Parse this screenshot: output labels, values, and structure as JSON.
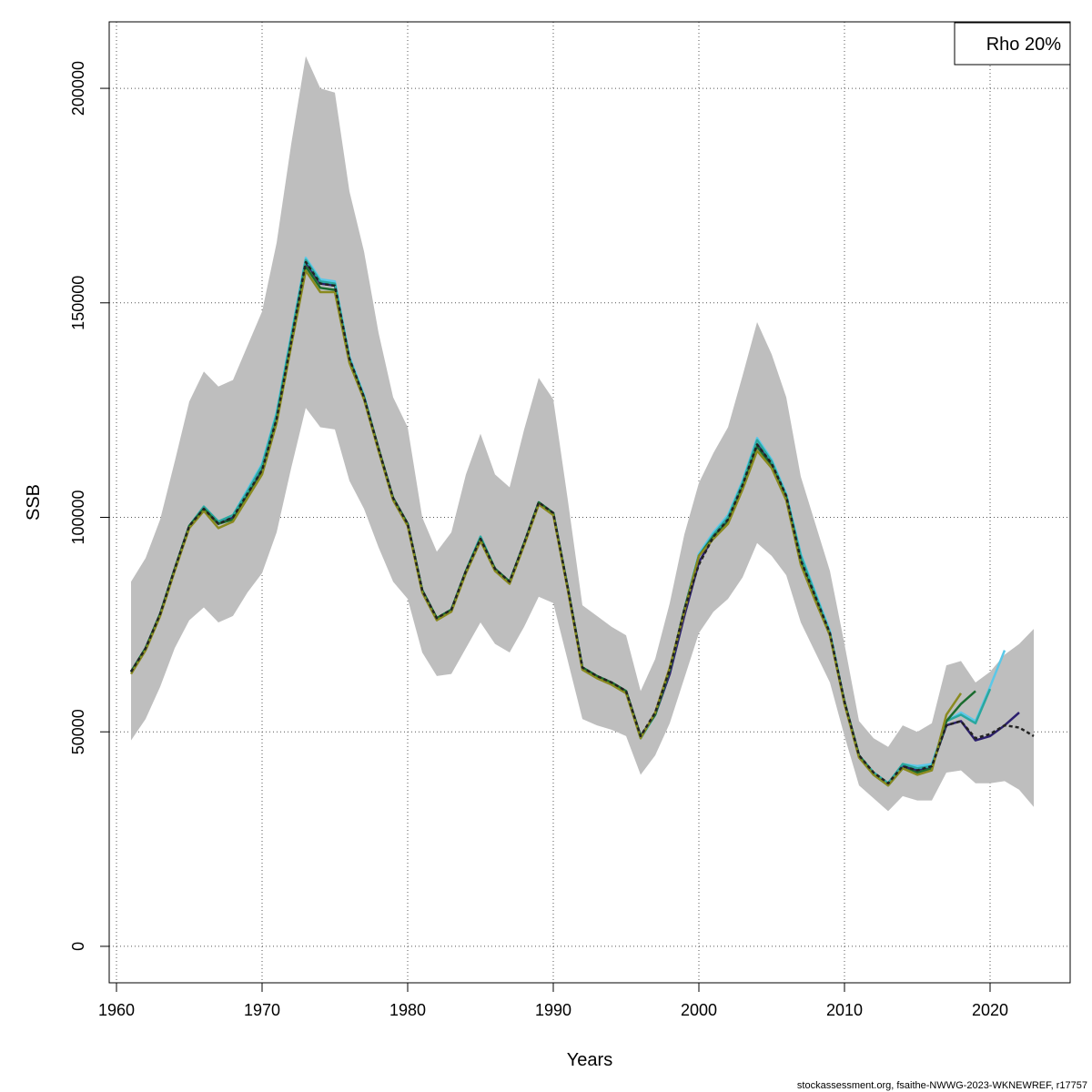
{
  "chart_data": {
    "type": "line",
    "xlabel": "Years",
    "ylabel": "SSB",
    "xlim": [
      1959.5,
      2025.5
    ],
    "ylim": [
      -8500,
      215500
    ],
    "xticks": [
      1960,
      1970,
      1980,
      1990,
      2000,
      2010,
      2020
    ],
    "yticks": [
      0,
      50000,
      100000,
      150000,
      200000
    ],
    "grid": true,
    "legend": {
      "position": "top-right",
      "text": "Rho 20%"
    },
    "band": {
      "x": [
        1961,
        1962,
        1963,
        1964,
        1965,
        1966,
        1967,
        1968,
        1969,
        1970,
        1971,
        1972,
        1973,
        1974,
        1975,
        1976,
        1977,
        1978,
        1979,
        1980,
        1981,
        1982,
        1983,
        1984,
        1985,
        1986,
        1987,
        1988,
        1989,
        1990,
        1991,
        1992,
        1993,
        1994,
        1995,
        1996,
        1997,
        1998,
        1999,
        2000,
        2001,
        2002,
        2003,
        2004,
        2005,
        2006,
        2007,
        2008,
        2009,
        2010,
        2011,
        2012,
        2013,
        2014,
        2015,
        2016,
        2017,
        2018,
        2019,
        2020,
        2021,
        2022,
        2023
      ],
      "upper": [
        85000,
        90500,
        99500,
        113000,
        127000,
        134000,
        130500,
        132000,
        140000,
        148000,
        164000,
        187000,
        207500,
        200000,
        199000,
        176000,
        162000,
        143000,
        128000,
        121000,
        100000,
        92000,
        96500,
        110000,
        119500,
        110000,
        107000,
        120500,
        132500,
        127500,
        104000,
        79500,
        77000,
        74500,
        72500,
        59500,
        67000,
        80000,
        96000,
        108000,
        115000,
        121000,
        133000,
        145500,
        138000,
        128000,
        109500,
        98500,
        87500,
        70500,
        52500,
        48500,
        46500,
        51500,
        50000,
        52000,
        65500,
        66500,
        61500,
        64000,
        68000,
        70500,
        74000
      ],
      "lower": [
        48000,
        53000,
        60500,
        69500,
        76000,
        79000,
        75500,
        77000,
        82500,
        87000,
        96500,
        111500,
        125500,
        121000,
        120500,
        108500,
        102000,
        93000,
        85000,
        81000,
        68500,
        63000,
        63500,
        69500,
        75500,
        70500,
        68500,
        74500,
        81500,
        80000,
        66500,
        53000,
        51500,
        50500,
        49000,
        40000,
        44500,
        52000,
        62500,
        73000,
        78000,
        81000,
        86000,
        94000,
        91000,
        86500,
        75500,
        68500,
        61500,
        49000,
        37500,
        34500,
        31500,
        35000,
        34000,
        34000,
        40500,
        41000,
        38000,
        38000,
        38500,
        36500,
        32500
      ]
    },
    "series": [
      {
        "color": "#222222",
        "dashed": true,
        "x": [
          1961,
          1962,
          1963,
          1964,
          1965,
          1966,
          1967,
          1968,
          1969,
          1970,
          1971,
          1972,
          1973,
          1974,
          1975,
          1976,
          1977,
          1978,
          1979,
          1980,
          1981,
          1982,
          1983,
          1984,
          1985,
          1986,
          1987,
          1988,
          1989,
          1990,
          1991,
          1992,
          1993,
          1994,
          1995,
          1996,
          1997,
          1998,
          1999,
          2000,
          2001,
          2002,
          2003,
          2004,
          2005,
          2006,
          2007,
          2008,
          2009,
          2010,
          2011,
          2012,
          2013,
          2014,
          2015,
          2016,
          2017,
          2018,
          2019,
          2020,
          2021,
          2022,
          2023
        ],
        "y": [
          64000,
          69500,
          77500,
          88000,
          98000,
          102000,
          98500,
          100000,
          105500,
          111000,
          123000,
          141000,
          159500,
          154500,
          154000,
          137000,
          128000,
          116000,
          104500,
          98500,
          83000,
          76500,
          78500,
          87500,
          95000,
          88000,
          85000,
          94000,
          103500,
          101000,
          83500,
          65000,
          63000,
          61500,
          59500,
          49000,
          54500,
          64500,
          78500,
          89000,
          95500,
          99500,
          107500,
          117000,
          112500,
          105000,
          90000,
          81500,
          73000,
          57000,
          44500,
          40500,
          38000,
          42000,
          41000,
          42000,
          51500,
          52500,
          48500,
          49500,
          51500,
          51000,
          49000
        ]
      },
      {
        "color": "#2c1f6e",
        "dashed": false,
        "x": [
          1961,
          1962,
          1963,
          1964,
          1965,
          1966,
          1967,
          1968,
          1969,
          1970,
          1971,
          1972,
          1973,
          1974,
          1975,
          1976,
          1977,
          1978,
          1979,
          1980,
          1981,
          1982,
          1983,
          1984,
          1985,
          1986,
          1987,
          1988,
          1989,
          1990,
          1991,
          1992,
          1993,
          1994,
          1995,
          1996,
          1997,
          1998,
          1999,
          2000,
          2001,
          2002,
          2003,
          2004,
          2005,
          2006,
          2007,
          2008,
          2009,
          2010,
          2011,
          2012,
          2013,
          2014,
          2015,
          2016,
          2017,
          2018,
          2019,
          2020,
          2021,
          2022
        ],
        "y": [
          64000,
          69500,
          77500,
          88000,
          98000,
          102000,
          98500,
          100000,
          105500,
          111000,
          123000,
          141000,
          159500,
          154500,
          154000,
          137000,
          128000,
          116000,
          104500,
          98500,
          83000,
          76500,
          78500,
          87500,
          95000,
          88000,
          85000,
          94000,
          103500,
          101000,
          83500,
          65000,
          63000,
          61500,
          59500,
          49000,
          54000,
          63500,
          77000,
          89500,
          95500,
          99500,
          107500,
          117000,
          112500,
          105000,
          90000,
          81500,
          73000,
          57000,
          44500,
          40500,
          38000,
          42000,
          41000,
          42000,
          51500,
          52500,
          48000,
          49000,
          51500,
          54500
        ]
      },
      {
        "color": "#5bc8e8",
        "dashed": false,
        "x": [
          1961,
          1962,
          1963,
          1964,
          1965,
          1966,
          1967,
          1968,
          1969,
          1970,
          1971,
          1972,
          1973,
          1974,
          1975,
          1976,
          1977,
          1978,
          1979,
          1980,
          1981,
          1982,
          1983,
          1984,
          1985,
          1986,
          1987,
          1988,
          1989,
          1990,
          1991,
          1992,
          1993,
          1994,
          1995,
          1996,
          1997,
          1998,
          1999,
          2000,
          2001,
          2002,
          2003,
          2004,
          2005,
          2006,
          2007,
          2008,
          2009,
          2010,
          2011,
          2012,
          2013,
          2014,
          2015,
          2016,
          2017,
          2018,
          2019,
          2020,
          2021
        ],
        "y": [
          64000,
          69500,
          77500,
          88000,
          98000,
          102500,
          99000,
          100500,
          106500,
          112500,
          124500,
          142500,
          160500,
          155500,
          155000,
          137500,
          128500,
          116000,
          104500,
          98500,
          83000,
          76500,
          78500,
          87500,
          95500,
          88000,
          85000,
          94000,
          103500,
          101000,
          83500,
          65000,
          63000,
          61500,
          59500,
          48500,
          54000,
          64500,
          78500,
          91500,
          96500,
          100500,
          108500,
          118500,
          113500,
          105500,
          91500,
          82500,
          73500,
          57000,
          44500,
          40500,
          38000,
          42500,
          42000,
          42500,
          52500,
          54500,
          52500,
          60500,
          69000
        ]
      },
      {
        "color": "#2aa79e",
        "dashed": false,
        "x": [
          1961,
          1962,
          1963,
          1964,
          1965,
          1966,
          1967,
          1968,
          1969,
          1970,
          1971,
          1972,
          1973,
          1974,
          1975,
          1976,
          1977,
          1978,
          1979,
          1980,
          1981,
          1982,
          1983,
          1984,
          1985,
          1986,
          1987,
          1988,
          1989,
          1990,
          1991,
          1992,
          1993,
          1994,
          1995,
          1996,
          1997,
          1998,
          1999,
          2000,
          2001,
          2002,
          2003,
          2004,
          2005,
          2006,
          2007,
          2008,
          2009,
          2010,
          2011,
          2012,
          2013,
          2014,
          2015,
          2016,
          2017,
          2018,
          2019,
          2020
        ],
        "y": [
          64000,
          69500,
          77500,
          88000,
          98000,
          102500,
          99000,
          100500,
          106000,
          112000,
          124000,
          142000,
          160000,
          155000,
          154500,
          137000,
          128000,
          116000,
          104500,
          98500,
          83000,
          76500,
          78500,
          87500,
          95500,
          88000,
          85000,
          94000,
          103500,
          101000,
          83500,
          65000,
          63000,
          61500,
          59500,
          48500,
          54000,
          64500,
          78500,
          91000,
          96000,
          100000,
          108000,
          118000,
          113000,
          105000,
          91000,
          82000,
          73000,
          57000,
          44500,
          40500,
          38000,
          42500,
          41500,
          42000,
          52500,
          54000,
          52000,
          60000
        ]
      },
      {
        "color": "#1a6b2e",
        "dashed": false,
        "x": [
          1961,
          1962,
          1963,
          1964,
          1965,
          1966,
          1967,
          1968,
          1969,
          1970,
          1971,
          1972,
          1973,
          1974,
          1975,
          1976,
          1977,
          1978,
          1979,
          1980,
          1981,
          1982,
          1983,
          1984,
          1985,
          1986,
          1987,
          1988,
          1989,
          1990,
          1991,
          1992,
          1993,
          1994,
          1995,
          1996,
          1997,
          1998,
          1999,
          2000,
          2001,
          2002,
          2003,
          2004,
          2005,
          2006,
          2007,
          2008,
          2009,
          2010,
          2011,
          2012,
          2013,
          2014,
          2015,
          2016,
          2017,
          2018,
          2019
        ],
        "y": [
          64000,
          69500,
          77500,
          88000,
          98000,
          102000,
          98500,
          99500,
          105000,
          110500,
          122500,
          140500,
          158500,
          153500,
          153000,
          136500,
          128000,
          116000,
          104500,
          98500,
          83000,
          76500,
          78500,
          87500,
          95000,
          88000,
          85000,
          94000,
          103500,
          101000,
          83500,
          65000,
          63000,
          61500,
          59500,
          49000,
          54000,
          64500,
          78500,
          91000,
          95500,
          99000,
          107000,
          116500,
          112000,
          104500,
          89500,
          81000,
          72500,
          57000,
          44500,
          40000,
          37500,
          41500,
          40500,
          41500,
          52500,
          56500,
          59500
        ]
      },
      {
        "color": "#8a8a1f",
        "dashed": false,
        "x": [
          1961,
          1962,
          1963,
          1964,
          1965,
          1966,
          1967,
          1968,
          1969,
          1970,
          1971,
          1972,
          1973,
          1974,
          1975,
          1976,
          1977,
          1978,
          1979,
          1980,
          1981,
          1982,
          1983,
          1984,
          1985,
          1986,
          1987,
          1988,
          1989,
          1990,
          1991,
          1992,
          1993,
          1994,
          1995,
          1996,
          1997,
          1998,
          1999,
          2000,
          2001,
          2002,
          2003,
          2004,
          2005,
          2006,
          2007,
          2008,
          2009,
          2010,
          2011,
          2012,
          2013,
          2014,
          2015,
          2016,
          2017,
          2018
        ],
        "y": [
          63500,
          69000,
          77000,
          87500,
          97500,
          101500,
          97500,
          99000,
          104500,
          110000,
          122000,
          140000,
          157500,
          152500,
          152500,
          136000,
          127500,
          115500,
          104000,
          98000,
          82500,
          76000,
          78000,
          87000,
          94500,
          87500,
          84500,
          93500,
          103000,
          100500,
          83000,
          64500,
          62500,
          61000,
          59000,
          48500,
          54500,
          65000,
          78000,
          91000,
          95000,
          98500,
          106500,
          115500,
          111500,
          104000,
          89000,
          80500,
          72500,
          56500,
          44000,
          40000,
          37500,
          41500,
          40000,
          41000,
          54000,
          59000
        ]
      }
    ]
  },
  "footer": "stockassessment.org, fsaithe-NWWG-2023-WKNEWREF, r17757"
}
